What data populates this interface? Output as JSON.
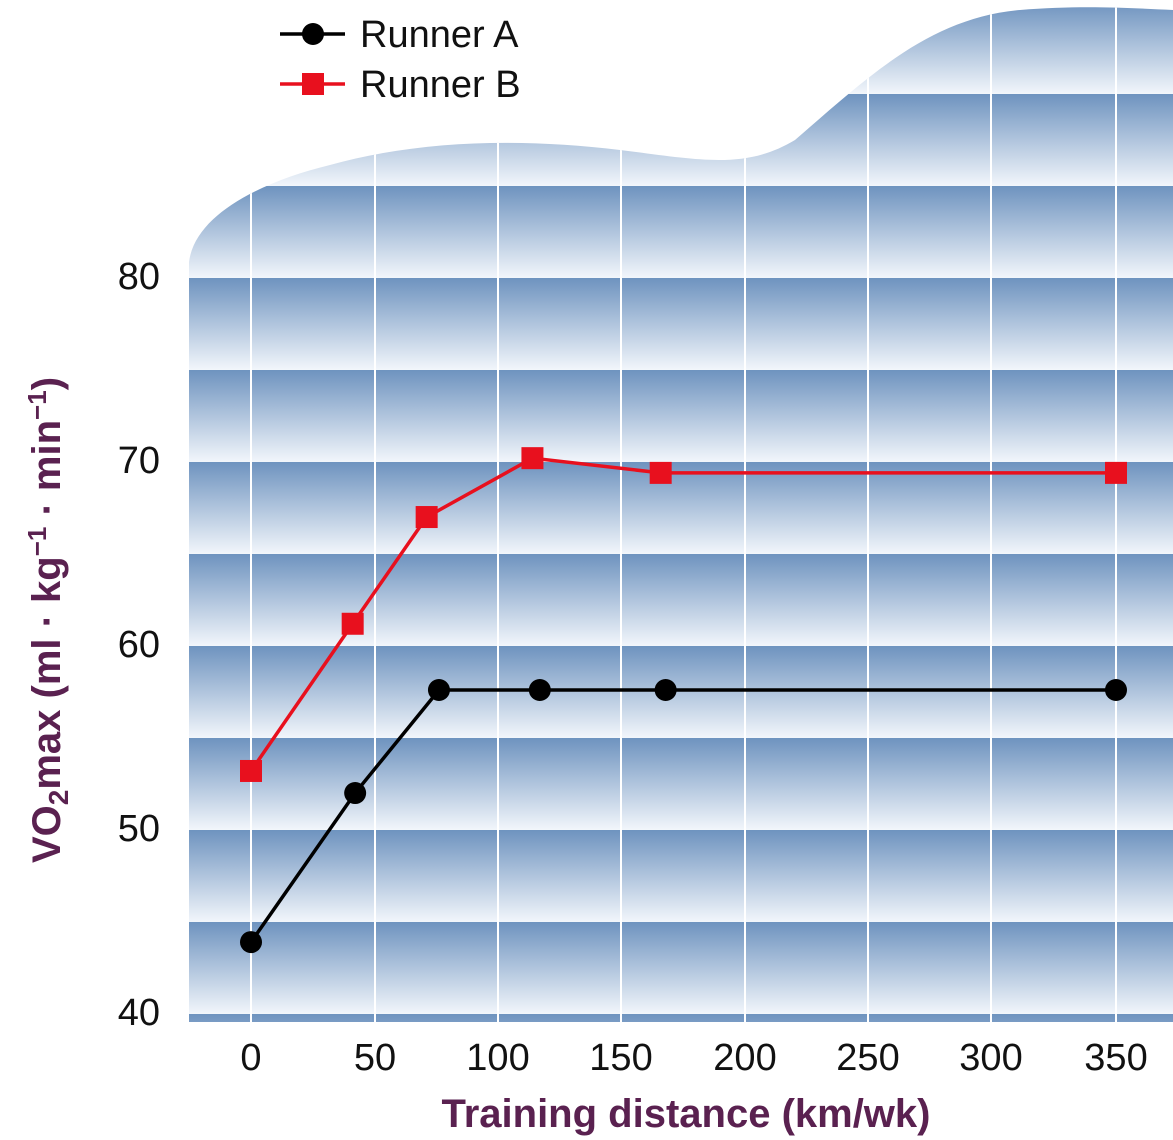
{
  "chart_data": {
    "type": "line",
    "xlabel": "Training distance (km/wk)",
    "ylabel": "V̇O₂max (ml · kg⁻¹ · min⁻¹)",
    "ylabel_parts": {
      "v": "V",
      "o": "O",
      "sub": "2",
      "rest_a": "max (ml · kg",
      "sup1": "−1",
      "rest_b": " · min",
      "sup2": "−1",
      "rest_c": ")"
    },
    "x_ticks": [
      0,
      50,
      100,
      150,
      200,
      250,
      300,
      350
    ],
    "x_tick_labels": [
      "0",
      "50",
      "100",
      "150",
      "200",
      "250",
      "300",
      "350"
    ],
    "y_ticks": [
      40,
      50,
      60,
      70,
      80
    ],
    "y_tick_labels": [
      "40",
      "50",
      "60",
      "70",
      "80"
    ],
    "ylim": [
      40,
      80
    ],
    "grid": true,
    "legend_position": "top-left",
    "series": [
      {
        "name": "Runner A",
        "marker": "circle",
        "color": "#000000",
        "points": [
          [
            0,
            43.8
          ],
          [
            42,
            51.9
          ],
          [
            76,
            57.5
          ],
          [
            117,
            57.5
          ],
          [
            168,
            57.5
          ],
          [
            350,
            57.5
          ]
        ]
      },
      {
        "name": "Runner B",
        "marker": "square",
        "color": "#e8101e",
        "points": [
          [
            0,
            53.1
          ],
          [
            41,
            61.1
          ],
          [
            71,
            66.9
          ],
          [
            114,
            70.1
          ],
          [
            166,
            69.3
          ],
          [
            350,
            69.3
          ]
        ]
      }
    ],
    "colors": {
      "band_dark": "#6e93bf",
      "band_light": "#f2f6fb",
      "grid": "#ffffff",
      "axis_title": "#5a2150"
    }
  }
}
